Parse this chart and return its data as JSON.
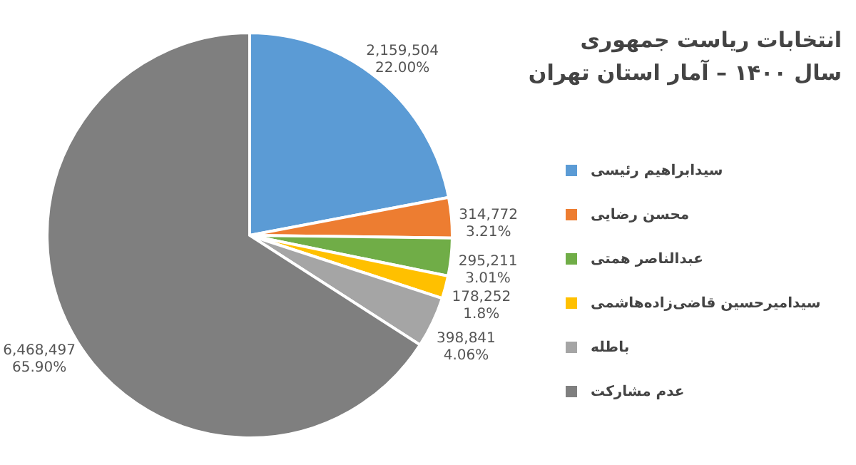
{
  "chart_data": {
    "type": "pie",
    "title": "انتخابات ریاست جمهوری",
    "subtitle": "سال ۱۴۰۰ – آمار استان تهران",
    "categories": [
      "سیدابراهیم رئیسی",
      "محسن رضایی",
      "عبدالناصر همتی",
      "سیدامیرحسین قاضی‌زاده‌هاشمی",
      "باطله",
      "عدم مشارکت"
    ],
    "values": [
      2159504,
      314772,
      295211,
      178252,
      398841,
      6468497
    ],
    "colors": [
      "#5b9bd5",
      "#ed7d31",
      "#70ad47",
      "#ffc000",
      "#a5a5a5",
      "#7f7f7f"
    ],
    "value_labels": [
      "2,159,504\n22.00%",
      "314,772\n3.21%",
      "295,211\n3.01%",
      "178,252\n1.8%",
      "398,841\n4.06%",
      "6,468,497\n65.90%"
    ],
    "legend": "right"
  }
}
